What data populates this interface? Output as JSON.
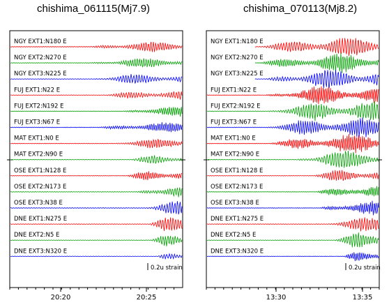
{
  "chart_data": [
    {
      "type": "line",
      "title": "chishima_061115(Mj7.9)",
      "x_ticks": [
        "20:20",
        "20:25"
      ],
      "scale_label": "0.2u strain",
      "series": [
        {
          "name": "NGY EXT1:N180 E",
          "color": "#ff0000"
        },
        {
          "name": "NGY EXT2:N270 E",
          "color": "#00a000"
        },
        {
          "name": "NGY EXT3:N225 E",
          "color": "#0000ff"
        },
        {
          "name": "FUJ EXT1:N22 E",
          "color": "#ff0000"
        },
        {
          "name": "FUJ EXT2:N192 E",
          "color": "#00a000"
        },
        {
          "name": "FUJ EXT3:N67 E",
          "color": "#0000ff"
        },
        {
          "name": "MAT EXT1:N0 E",
          "color": "#ff0000"
        },
        {
          "name": "MAT EXT2:N90 E",
          "color": "#00a000"
        },
        {
          "name": "OSE EXT1:N128 E",
          "color": "#ff0000"
        },
        {
          "name": "OSE EXT2:N173 E",
          "color": "#00a000"
        },
        {
          "name": "OSE EXT3:N38 E",
          "color": "#0000ff"
        },
        {
          "name": "DNE EXT1:N275 E",
          "color": "#ff0000"
        },
        {
          "name": "DNE EXT2:N5 E",
          "color": "#00a000"
        },
        {
          "name": "DNE EXT3:N320 E",
          "color": "#0000ff"
        }
      ]
    },
    {
      "type": "line",
      "title": "chishima_070113(Mj8.2)",
      "x_ticks": [
        "13:30",
        "13:35"
      ],
      "scale_label": "0.2u strain",
      "series": [
        {
          "name": "NGY EXT1:N180 E",
          "color": "#ff0000"
        },
        {
          "name": "NGY EXT2:N270 E",
          "color": "#00a000"
        },
        {
          "name": "NGY EXT3:N225 E",
          "color": "#0000ff"
        },
        {
          "name": "FUJ EXT1:N22 E",
          "color": "#ff0000"
        },
        {
          "name": "FUJ EXT2:N192 E",
          "color": "#00a000"
        },
        {
          "name": "FUJ EXT3:N67 E",
          "color": "#0000ff"
        },
        {
          "name": "MAT EXT1:N0 E",
          "color": "#ff0000"
        },
        {
          "name": "MAT EXT2:N90 E",
          "color": "#00a000"
        },
        {
          "name": "OSE EXT1:N128 E",
          "color": "#ff0000"
        },
        {
          "name": "OSE EXT2:N173 E",
          "color": "#00a000"
        },
        {
          "name": "OSE EXT3:N38 E",
          "color": "#0000ff"
        },
        {
          "name": "DNE EXT1:N275 E",
          "color": "#ff0000"
        },
        {
          "name": "DNE EXT2:N5 E",
          "color": "#00a000"
        },
        {
          "name": "DNE EXT3:N320 E",
          "color": "#0000ff"
        }
      ]
    }
  ]
}
